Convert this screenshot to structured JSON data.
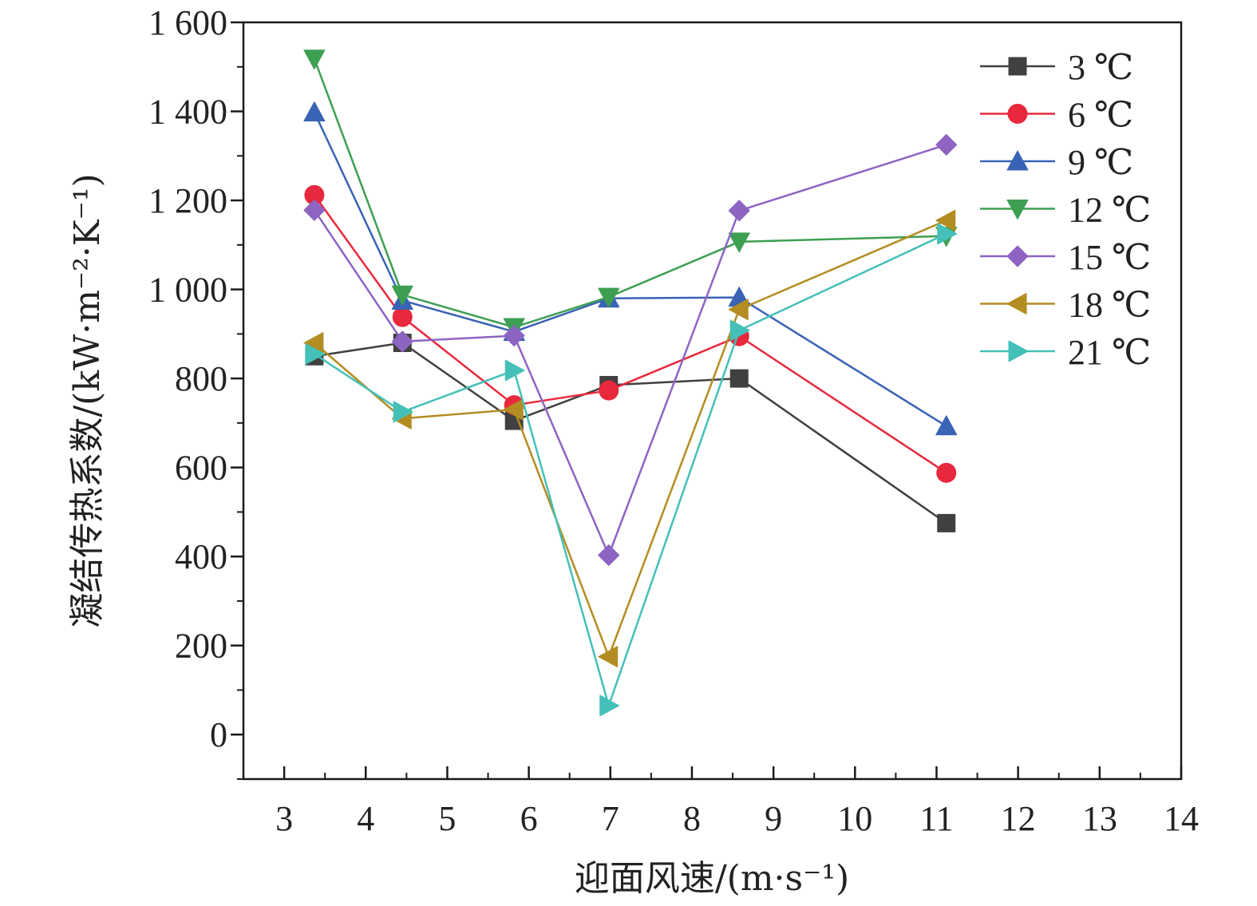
{
  "chart_data": {
    "type": "line",
    "xlabel": "迎面风速/(m·s⁻¹)",
    "ylabel": "凝结传热系数/(kW·m⁻²·K⁻¹)",
    "xlim": [
      2.5,
      14
    ],
    "ylim": [
      -100,
      1600
    ],
    "xticks": [
      3,
      4,
      5,
      6,
      7,
      8,
      9,
      10,
      11,
      12,
      13,
      14
    ],
    "xtick_labels": [
      "3",
      "4",
      "5",
      "6",
      "7",
      "8",
      "9",
      "10",
      "11",
      "12",
      "13",
      "14"
    ],
    "yticks": [
      0,
      200,
      400,
      600,
      800,
      1000,
      1200,
      1400,
      1600
    ],
    "ytick_labels": [
      "0",
      "200",
      "400",
      "600",
      "800",
      "1 000",
      "1 200",
      "1 400",
      "1 600"
    ],
    "grid": false,
    "legend_position": "top-right",
    "x": [
      3.37,
      4.45,
      5.82,
      6.98,
      8.58,
      11.12
    ],
    "series": [
      {
        "name": "3 ℃",
        "marker": "square",
        "color": "#404040",
        "values": [
          850,
          880,
          705,
          785,
          800,
          475
        ]
      },
      {
        "name": "6 ℃",
        "marker": "circle",
        "color": "#e8283c",
        "values": [
          1212,
          938,
          740,
          773,
          895,
          588
        ]
      },
      {
        "name": "9 ℃",
        "marker": "triangle-up",
        "color": "#3a63b5",
        "values": [
          1398,
          975,
          905,
          980,
          982,
          693
        ]
      },
      {
        "name": "12 ℃",
        "marker": "triangle-down",
        "color": "#3d9f52",
        "values": [
          1518,
          988,
          915,
          983,
          1107,
          1120
        ]
      },
      {
        "name": "15 ℃",
        "marker": "diamond",
        "color": "#8e64c2",
        "values": [
          1178,
          883,
          896,
          403,
          1177,
          1325
        ]
      },
      {
        "name": "18 ℃",
        "marker": "triangle-left",
        "color": "#b38d22",
        "values": [
          880,
          710,
          730,
          175,
          955,
          1155
        ]
      },
      {
        "name": "21 ℃",
        "marker": "triangle-right",
        "color": "#44c0b8",
        "values": [
          855,
          725,
          818,
          65,
          908,
          1125
        ]
      }
    ]
  }
}
